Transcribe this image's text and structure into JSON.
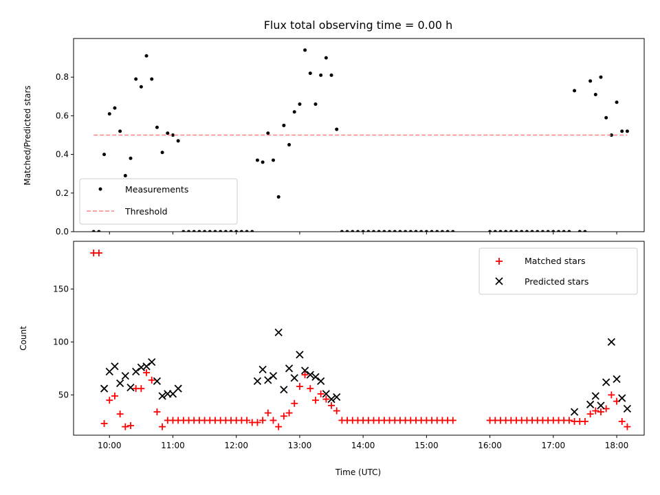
{
  "chart_data": [
    {
      "type": "scatter",
      "title": "Flux total observing time = 0.00 h",
      "xlabel": "",
      "ylabel": "Matched/Predicted stars",
      "xlim": [
        "09:26",
        "18:26"
      ],
      "ylim": [
        0,
        1.0
      ],
      "yticks": [
        0.0,
        0.2,
        0.4,
        0.6,
        0.8
      ],
      "grid": false,
      "legend": "lower-left",
      "series": [
        {
          "name": "Measurements",
          "color": "#000000",
          "marker": "dot",
          "points": [
            [
              "09:45",
              0.0
            ],
            [
              "09:50",
              0.0
            ],
            [
              "09:55",
              0.4
            ],
            [
              "10:00",
              0.61
            ],
            [
              "10:05",
              0.64
            ],
            [
              "10:10",
              0.52
            ],
            [
              "10:15",
              0.29
            ],
            [
              "10:20",
              0.38
            ],
            [
              "10:25",
              0.79
            ],
            [
              "10:30",
              0.75
            ],
            [
              "10:35",
              0.91
            ],
            [
              "10:40",
              0.79
            ],
            [
              "10:45",
              0.54
            ],
            [
              "10:50",
              0.41
            ],
            [
              "10:55",
              0.51
            ],
            [
              "11:00",
              0.5
            ],
            [
              "11:05",
              0.47
            ],
            [
              "11:10",
              0.0
            ],
            [
              "11:15",
              0.0
            ],
            [
              "11:20",
              0.0
            ],
            [
              "11:25",
              0.0
            ],
            [
              "11:30",
              0.0
            ],
            [
              "11:35",
              0.0
            ],
            [
              "11:40",
              0.0
            ],
            [
              "11:45",
              0.0
            ],
            [
              "11:50",
              0.0
            ],
            [
              "11:55",
              0.0
            ],
            [
              "12:00",
              0.0
            ],
            [
              "12:05",
              0.0
            ],
            [
              "12:10",
              0.0
            ],
            [
              "12:15",
              0.0
            ],
            [
              "12:20",
              0.37
            ],
            [
              "12:25",
              0.36
            ],
            [
              "12:30",
              0.51
            ],
            [
              "12:35",
              0.37
            ],
            [
              "12:40",
              0.18
            ],
            [
              "12:45",
              0.55
            ],
            [
              "12:50",
              0.45
            ],
            [
              "12:55",
              0.62
            ],
            [
              "13:00",
              0.66
            ],
            [
              "13:05",
              0.94
            ],
            [
              "13:10",
              0.82
            ],
            [
              "13:15",
              0.66
            ],
            [
              "13:20",
              0.81
            ],
            [
              "13:25",
              0.9
            ],
            [
              "13:30",
              0.81
            ],
            [
              "13:35",
              0.53
            ],
            [
              "13:40",
              0.0
            ],
            [
              "13:45",
              0.0
            ],
            [
              "13:50",
              0.0
            ],
            [
              "13:55",
              0.0
            ],
            [
              "14:00",
              0.0
            ],
            [
              "14:05",
              0.0
            ],
            [
              "14:10",
              0.0
            ],
            [
              "14:15",
              0.0
            ],
            [
              "14:20",
              0.0
            ],
            [
              "14:25",
              0.0
            ],
            [
              "14:30",
              0.0
            ],
            [
              "14:35",
              0.0
            ],
            [
              "14:40",
              0.0
            ],
            [
              "14:45",
              0.0
            ],
            [
              "14:50",
              0.0
            ],
            [
              "14:55",
              0.0
            ],
            [
              "15:00",
              0.0
            ],
            [
              "15:05",
              0.0
            ],
            [
              "15:10",
              0.0
            ],
            [
              "15:15",
              0.0
            ],
            [
              "15:20",
              0.0
            ],
            [
              "15:25",
              0.0
            ],
            [
              "16:00",
              0.0
            ],
            [
              "16:05",
              0.0
            ],
            [
              "16:10",
              0.0
            ],
            [
              "16:15",
              0.0
            ],
            [
              "16:20",
              0.0
            ],
            [
              "16:25",
              0.0
            ],
            [
              "16:30",
              0.0
            ],
            [
              "16:35",
              0.0
            ],
            [
              "16:40",
              0.0
            ],
            [
              "16:45",
              0.0
            ],
            [
              "16:50",
              0.0
            ],
            [
              "16:55",
              0.0
            ],
            [
              "17:00",
              0.0
            ],
            [
              "17:05",
              0.0
            ],
            [
              "17:10",
              0.0
            ],
            [
              "17:15",
              0.0
            ],
            [
              "17:20",
              0.73
            ],
            [
              "17:25",
              0.0
            ],
            [
              "17:30",
              0.0
            ],
            [
              "17:35",
              0.78
            ],
            [
              "17:40",
              0.71
            ],
            [
              "17:45",
              0.8
            ],
            [
              "17:50",
              0.59
            ],
            [
              "17:55",
              0.5
            ],
            [
              "18:00",
              0.67
            ],
            [
              "18:05",
              0.52
            ],
            [
              "18:10",
              0.52
            ]
          ]
        },
        {
          "name": "Threshold",
          "color": "#ff8080",
          "marker": "dashed-line",
          "points": [
            [
              "09:45",
              0.5
            ],
            [
              "18:10",
              0.5
            ]
          ]
        }
      ]
    },
    {
      "type": "scatter",
      "title": "",
      "xlabel": "Time (UTC)",
      "ylabel": "Count",
      "xlim": [
        "09:26",
        "18:26"
      ],
      "ylim": [
        12,
        195
      ],
      "yticks": [
        50,
        100,
        150
      ],
      "xticks": [
        "10:00",
        "11:00",
        "12:00",
        "13:00",
        "14:00",
        "15:00",
        "16:00",
        "17:00",
        "18:00"
      ],
      "grid": false,
      "legend": "upper-right",
      "series": [
        {
          "name": "Matched stars",
          "color": "#ff0000",
          "marker": "plus",
          "points": [
            [
              "09:45",
              184
            ],
            [
              "09:50",
              184
            ],
            [
              "09:55",
              23
            ],
            [
              "10:00",
              45
            ],
            [
              "10:05",
              49
            ],
            [
              "10:10",
              32
            ],
            [
              "10:15",
              20
            ],
            [
              "10:20",
              21
            ],
            [
              "10:25",
              56
            ],
            [
              "10:30",
              56
            ],
            [
              "10:35",
              71
            ],
            [
              "10:40",
              64
            ],
            [
              "10:45",
              34
            ],
            [
              "10:50",
              20
            ],
            [
              "10:55",
              26
            ],
            [
              "11:00",
              26
            ],
            [
              "11:05",
              26
            ],
            [
              "11:10",
              26
            ],
            [
              "11:15",
              26
            ],
            [
              "11:20",
              26
            ],
            [
              "11:25",
              26
            ],
            [
              "11:30",
              26
            ],
            [
              "11:35",
              26
            ],
            [
              "11:40",
              26
            ],
            [
              "11:45",
              26
            ],
            [
              "11:50",
              26
            ],
            [
              "11:55",
              26
            ],
            [
              "12:00",
              26
            ],
            [
              "12:05",
              26
            ],
            [
              "12:10",
              26
            ],
            [
              "12:15",
              24
            ],
            [
              "12:20",
              24
            ],
            [
              "12:25",
              26
            ],
            [
              "12:30",
              33
            ],
            [
              "12:35",
              26
            ],
            [
              "12:40",
              20
            ],
            [
              "12:45",
              30
            ],
            [
              "12:50",
              33
            ],
            [
              "12:55",
              42
            ],
            [
              "13:00",
              58
            ],
            [
              "13:05",
              69
            ],
            [
              "13:10",
              56
            ],
            [
              "13:15",
              45
            ],
            [
              "13:20",
              51
            ],
            [
              "13:25",
              46
            ],
            [
              "13:30",
              40
            ],
            [
              "13:35",
              35
            ],
            [
              "13:40",
              26
            ],
            [
              "13:45",
              26
            ],
            [
              "13:50",
              26
            ],
            [
              "13:55",
              26
            ],
            [
              "14:00",
              26
            ],
            [
              "14:05",
              26
            ],
            [
              "14:10",
              26
            ],
            [
              "14:15",
              26
            ],
            [
              "14:20",
              26
            ],
            [
              "14:25",
              26
            ],
            [
              "14:30",
              26
            ],
            [
              "14:35",
              26
            ],
            [
              "14:40",
              26
            ],
            [
              "14:45",
              26
            ],
            [
              "14:50",
              26
            ],
            [
              "14:55",
              26
            ],
            [
              "15:00",
              26
            ],
            [
              "15:05",
              26
            ],
            [
              "15:10",
              26
            ],
            [
              "15:15",
              26
            ],
            [
              "15:20",
              26
            ],
            [
              "15:25",
              26
            ],
            [
              "16:00",
              26
            ],
            [
              "16:05",
              26
            ],
            [
              "16:10",
              26
            ],
            [
              "16:15",
              26
            ],
            [
              "16:20",
              26
            ],
            [
              "16:25",
              26
            ],
            [
              "16:30",
              26
            ],
            [
              "16:35",
              26
            ],
            [
              "16:40",
              26
            ],
            [
              "16:45",
              26
            ],
            [
              "16:50",
              26
            ],
            [
              "16:55",
              26
            ],
            [
              "17:00",
              26
            ],
            [
              "17:05",
              26
            ],
            [
              "17:10",
              26
            ],
            [
              "17:15",
              26
            ],
            [
              "17:20",
              25
            ],
            [
              "17:25",
              25
            ],
            [
              "17:30",
              25
            ],
            [
              "17:35",
              32
            ],
            [
              "17:40",
              35
            ],
            [
              "17:45",
              34
            ],
            [
              "17:50",
              37
            ],
            [
              "17:55",
              50
            ],
            [
              "18:00",
              44
            ],
            [
              "18:05",
              25
            ],
            [
              "18:10",
              20
            ]
          ]
        },
        {
          "name": "Predicted stars",
          "color": "#000000",
          "marker": "x",
          "points": [
            [
              "09:55",
              56
            ],
            [
              "10:00",
              72
            ],
            [
              "10:05",
              77
            ],
            [
              "10:10",
              61
            ],
            [
              "10:15",
              68
            ],
            [
              "10:20",
              57
            ],
            [
              "10:25",
              72
            ],
            [
              "10:30",
              76
            ],
            [
              "10:35",
              77
            ],
            [
              "10:40",
              81
            ],
            [
              "10:45",
              63
            ],
            [
              "10:50",
              49
            ],
            [
              "10:55",
              51
            ],
            [
              "11:00",
              51
            ],
            [
              "11:05",
              56
            ],
            [
              "12:20",
              63
            ],
            [
              "12:25",
              74
            ],
            [
              "12:30",
              64
            ],
            [
              "12:35",
              68
            ],
            [
              "12:40",
              109
            ],
            [
              "12:45",
              55
            ],
            [
              "12:50",
              75
            ],
            [
              "12:55",
              66
            ],
            [
              "13:00",
              88
            ],
            [
              "13:05",
              73
            ],
            [
              "13:10",
              69
            ],
            [
              "13:15",
              67
            ],
            [
              "13:20",
              63
            ],
            [
              "13:25",
              51
            ],
            [
              "13:30",
              46
            ],
            [
              "13:35",
              48
            ],
            [
              "17:20",
              34
            ],
            [
              "17:35",
              41
            ],
            [
              "17:40",
              49
            ],
            [
              "17:45",
              40
            ],
            [
              "17:50",
              62
            ],
            [
              "17:55",
              100
            ],
            [
              "18:00",
              65
            ],
            [
              "18:05",
              47
            ],
            [
              "18:10",
              37
            ]
          ]
        }
      ]
    }
  ]
}
